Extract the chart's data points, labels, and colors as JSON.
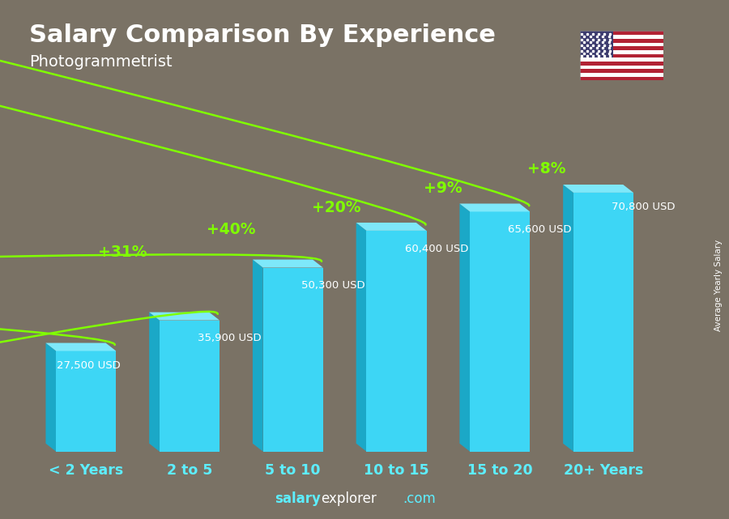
{
  "title": "Salary Comparison By Experience",
  "subtitle": "Photogrammetrist",
  "categories": [
    "< 2 Years",
    "2 to 5",
    "5 to 10",
    "10 to 15",
    "15 to 20",
    "20+ Years"
  ],
  "values": [
    27500,
    35900,
    50300,
    60400,
    65600,
    70800
  ],
  "bar_color_face": "#3DD6F5",
  "bar_color_left": "#1BA8C7",
  "bar_color_top": "#7EE8FA",
  "value_labels": [
    "27,500 USD",
    "35,900 USD",
    "50,300 USD",
    "60,400 USD",
    "65,600 USD",
    "70,800 USD"
  ],
  "pct_labels": [
    null,
    "+31%",
    "+40%",
    "+20%",
    "+9%",
    "+8%"
  ],
  "pct_color": "#80FF00",
  "title_color": "#FFFFFF",
  "subtitle_color": "#FFFFFF",
  "xlabel_color": "#5DEEFF",
  "ylabel_text": "Average Yearly Salary",
  "footer_salary": "salary",
  "footer_explorer": "explorer",
  "footer_com": ".com",
  "footer_color_salary": "#5DEEFF",
  "footer_color_explorer": "#FFFFFF",
  "footer_color_com": "#5DEEFF",
  "ylim_max": 88000,
  "figsize": [
    9.0,
    6.41
  ],
  "dpi": 100,
  "bg_color": "#7a7265",
  "flag_colors": {
    "red": "#B22234",
    "white": "#FFFFFF",
    "blue": "#3C3B6E"
  }
}
